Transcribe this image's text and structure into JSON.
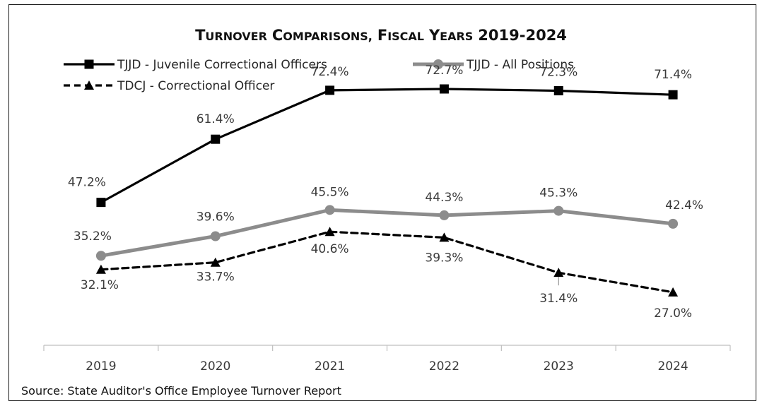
{
  "chart_data": {
    "type": "line",
    "title": "Turnover Comparisons, Fiscal Years 2019-2024",
    "title_main": "T",
    "xlabel": "",
    "ylabel": "",
    "categories": [
      "2019",
      "2020",
      "2021",
      "2022",
      "2023",
      "2024"
    ],
    "ylim": [
      0,
      90
    ],
    "grid": false,
    "legend_position": "top-left",
    "series": [
      {
        "name": "TJJD - Juvenile Correctional Officers",
        "values": [
          47.2,
          61.4,
          72.4,
          72.7,
          72.3,
          71.4
        ],
        "labels": [
          "47.2%",
          "61.4%",
          "72.4%",
          "72.7%",
          "72.3%",
          "71.4%"
        ],
        "color": "#000000",
        "marker": "square",
        "line_style": "solid"
      },
      {
        "name": "TJJD - All Positions",
        "values": [
          35.2,
          39.6,
          45.5,
          44.3,
          45.3,
          42.4
        ],
        "labels": [
          "35.2%",
          "39.6%",
          "45.5%",
          "44.3%",
          "45.3%",
          "42.4%"
        ],
        "color": "#8c8c8c",
        "marker": "circle",
        "line_style": "solid"
      },
      {
        "name": "TDCJ - Correctional Officer",
        "values": [
          32.1,
          33.7,
          40.6,
          39.3,
          31.4,
          27.0
        ],
        "labels": [
          "32.1%",
          "33.7%",
          "40.6%",
          "39.3%",
          "31.4%",
          "27.0%"
        ],
        "color": "#000000",
        "marker": "triangle",
        "line_style": "dashed"
      }
    ],
    "source": "Source: State Auditor's Office Employee Turnover Report"
  }
}
